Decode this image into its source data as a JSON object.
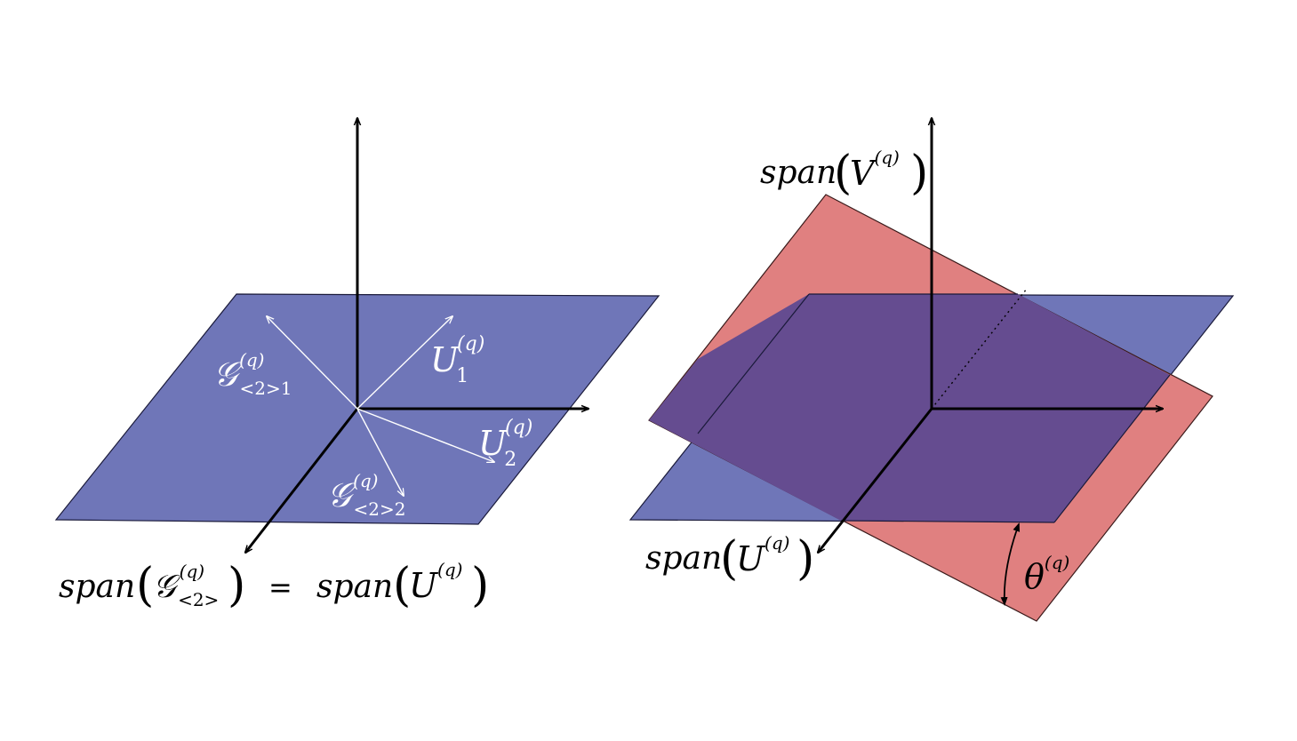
{
  "left_panel": {
    "vectors": {
      "u1": {
        "base": "U",
        "sub": "1",
        "sup": "(q)"
      },
      "u2": {
        "base": "U",
        "sub": "2",
        "sup": "(q)"
      },
      "g1": {
        "base": "𝒢",
        "sub": "<2>1",
        "sup": "(q)"
      },
      "g2": {
        "base": "𝒢",
        "sub": "<2>2",
        "sup": "(q)"
      }
    },
    "equation": {
      "lhs_func": "span",
      "lhs_base": "𝒢",
      "lhs_sub": "<2>",
      "lhs_sup": "(q)",
      "equals": "=",
      "rhs_func": "span",
      "rhs_base": "U",
      "rhs_sup": "(q)"
    }
  },
  "right_panel": {
    "span_v": {
      "func": "span",
      "base": "V",
      "sup": "(q)"
    },
    "span_u": {
      "func": "span",
      "base": "U",
      "sup": "(q)"
    },
    "angle": {
      "base": "θ",
      "sup": "(q)"
    }
  },
  "colors": {
    "blue_plane": "#6f76b8",
    "red_plane": "#e08080",
    "overlap": "#654c90",
    "axis": "#000000",
    "vector": "#ffffff"
  }
}
